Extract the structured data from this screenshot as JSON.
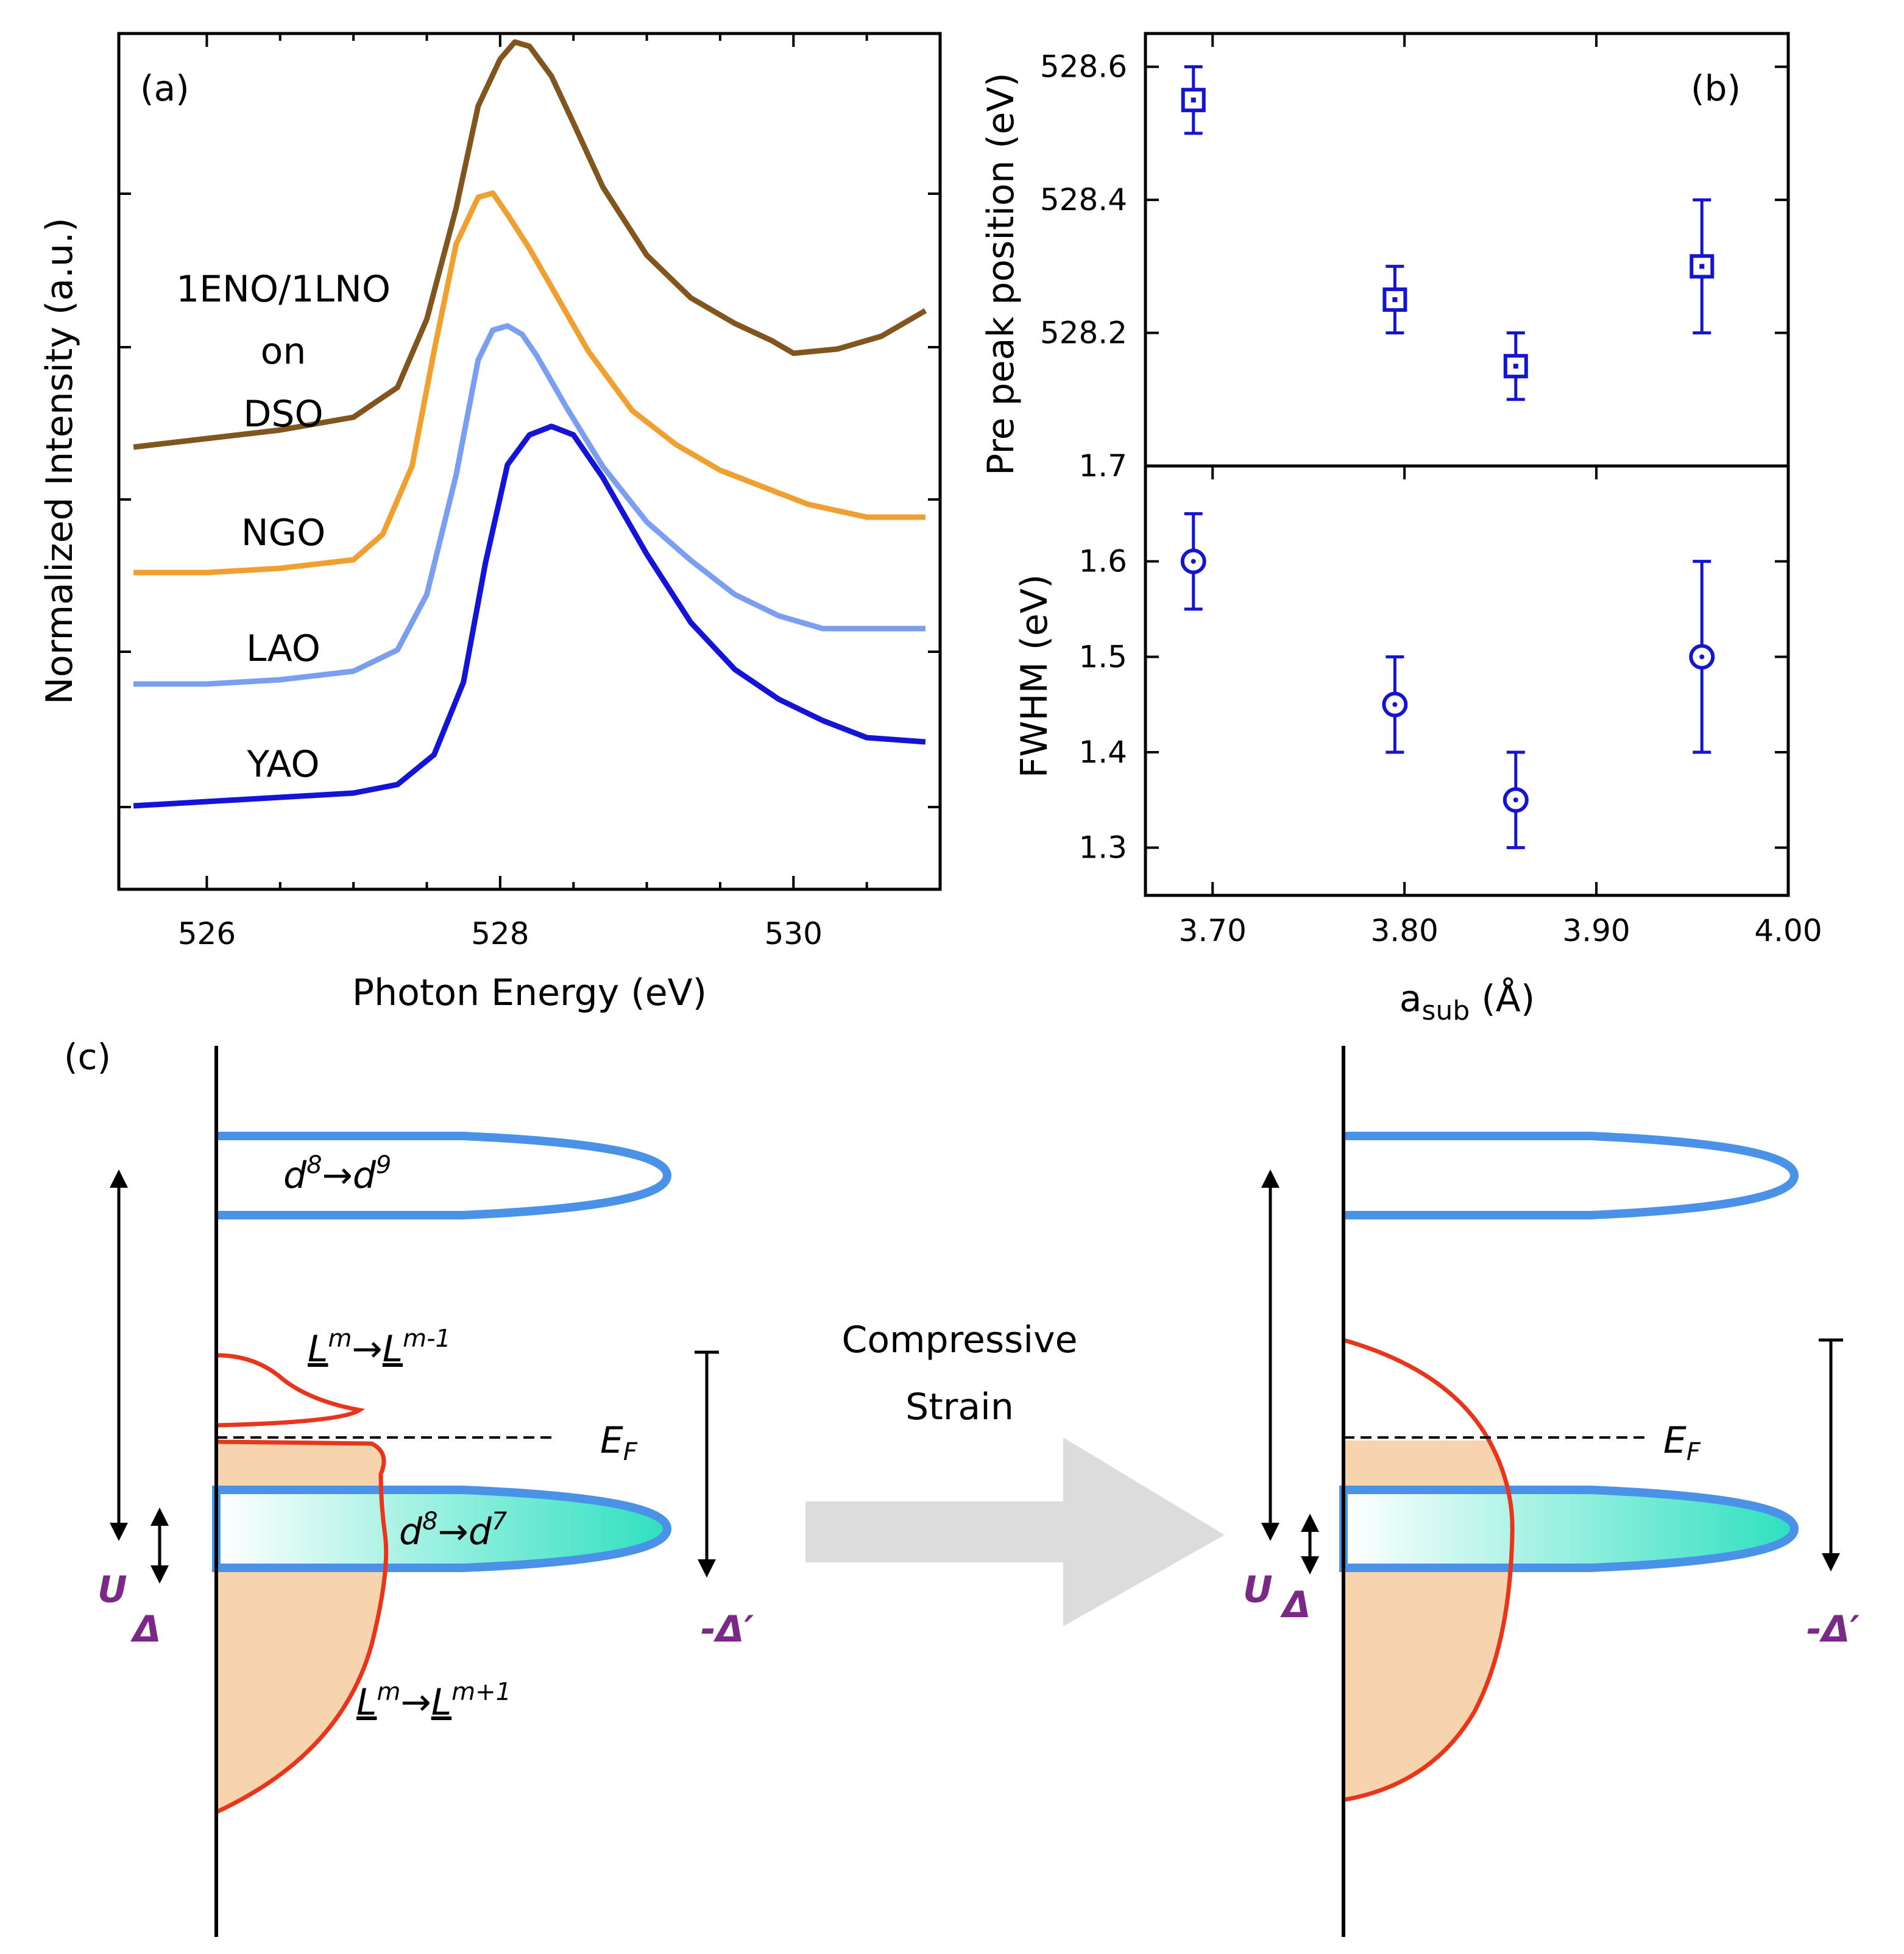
{
  "chart_data": [
    {
      "panel": "(a)",
      "type": "line",
      "xlabel": "Photon Energy (eV)",
      "ylabel": "Normalized Intensity (a.u.)",
      "xlim": [
        525.4,
        531.0
      ],
      "xticks": [
        "526",
        "528",
        "530"
      ],
      "title_lines": [
        "1ENO/1LNO",
        "on",
        "DSO"
      ],
      "series": [
        {
          "name": "DSO",
          "color": "#80561e",
          "x": [
            525.5,
            526.0,
            526.5,
            527.0,
            527.3,
            527.5,
            527.7,
            527.85,
            528.0,
            528.1,
            528.2,
            528.35,
            528.5,
            528.7,
            529.0,
            529.3,
            529.6,
            529.85,
            530.0,
            530.3,
            530.6,
            530.9
          ],
          "y": [
            0.02,
            0.04,
            0.06,
            0.09,
            0.16,
            0.32,
            0.58,
            0.82,
            0.93,
            0.97,
            0.96,
            0.89,
            0.78,
            0.63,
            0.47,
            0.37,
            0.31,
            0.27,
            0.24,
            0.25,
            0.28,
            0.34
          ]
        },
        {
          "name": "NGO",
          "color": "#f0a030",
          "x": [
            525.5,
            526.0,
            526.5,
            527.0,
            527.2,
            527.4,
            527.55,
            527.7,
            527.85,
            527.95,
            528.05,
            528.2,
            528.4,
            528.6,
            528.9,
            529.2,
            529.5,
            529.8,
            530.1,
            530.5,
            530.9
          ],
          "y": [
            0.0,
            0.0,
            0.01,
            0.03,
            0.09,
            0.25,
            0.52,
            0.77,
            0.88,
            0.89,
            0.84,
            0.76,
            0.64,
            0.52,
            0.38,
            0.3,
            0.24,
            0.2,
            0.16,
            0.13,
            0.13
          ]
        },
        {
          "name": "LAO",
          "color": "#7b9ff0",
          "x": [
            525.5,
            526.0,
            526.5,
            527.0,
            527.3,
            527.5,
            527.7,
            527.85,
            527.95,
            528.05,
            528.15,
            528.25,
            528.45,
            528.7,
            529.0,
            529.3,
            529.6,
            529.9,
            530.2,
            530.5,
            530.9
          ],
          "y": [
            0.01,
            0.01,
            0.02,
            0.04,
            0.09,
            0.22,
            0.5,
            0.77,
            0.84,
            0.85,
            0.83,
            0.78,
            0.66,
            0.52,
            0.39,
            0.3,
            0.22,
            0.17,
            0.14,
            0.14,
            0.14
          ]
        },
        {
          "name": "YAO",
          "color": "#1414d8",
          "x": [
            525.5,
            526.0,
            526.5,
            527.0,
            527.3,
            527.55,
            527.75,
            527.9,
            528.05,
            528.2,
            528.35,
            528.5,
            528.7,
            529.0,
            529.3,
            529.6,
            529.9,
            530.2,
            530.5,
            530.9
          ],
          "y": [
            0.01,
            0.02,
            0.03,
            0.04,
            0.06,
            0.13,
            0.3,
            0.58,
            0.81,
            0.88,
            0.9,
            0.88,
            0.78,
            0.6,
            0.44,
            0.33,
            0.26,
            0.21,
            0.17,
            0.16
          ]
        }
      ]
    },
    {
      "panel": "(b)",
      "type": "scatter",
      "xlabel_main": "a",
      "xlabel_sub": "sub",
      "xlabel_unit": " (Å)",
      "xlim": [
        3.665,
        4.0
      ],
      "xticks": [
        "3.70",
        "3.80",
        "3.90",
        "4.00"
      ],
      "top": {
        "ylabel": "Pre peak position (eV)",
        "ylim": [
          528.0,
          528.65
        ],
        "yticks": [
          "528.6",
          "528.4",
          "528.2"
        ],
        "bottom_label": "1.7",
        "marker": "square",
        "points": [
          {
            "x": 3.69,
            "y": 528.55,
            "err": 0.05
          },
          {
            "x": 3.795,
            "y": 528.25,
            "err": 0.05
          },
          {
            "x": 3.858,
            "y": 528.15,
            "err": 0.05
          },
          {
            "x": 3.955,
            "y": 528.3,
            "err": 0.1
          }
        ]
      },
      "bottom": {
        "ylabel": "FWHM (eV)",
        "ylim": [
          1.25,
          1.7
        ],
        "yticks": [
          "1.6",
          "1.5",
          "1.4",
          "1.3"
        ],
        "marker": "circle",
        "points": [
          {
            "x": 3.69,
            "y": 1.6,
            "err": 0.05
          },
          {
            "x": 3.795,
            "y": 1.45,
            "err": 0.05
          },
          {
            "x": 3.858,
            "y": 1.35,
            "err": 0.05
          },
          {
            "x": 3.955,
            "y": 1.5,
            "err": 0.1
          }
        ]
      },
      "color": "#1515d0"
    },
    {
      "panel": "(c)",
      "type": "diagram",
      "arrow_text": [
        "Compressive",
        "Strain"
      ],
      "fermi_label": "E",
      "fermi_sub": "F",
      "u_label": "U",
      "delta_label": "Δ",
      "delta_prime_label": "-Δ′",
      "upper_hubbard": {
        "pre": "d",
        "sup1": "8",
        "mid": "→d",
        "sup2": "9"
      },
      "lower_hubbard": {
        "pre": "d",
        "sup1": "8",
        "mid": "→d",
        "sup2": "7"
      },
      "ligand_upper": {
        "pre": "L",
        "sup1": "m",
        "mid": "→",
        "pre2": "L",
        "sup2": "m-1"
      },
      "ligand_lower": {
        "pre": "L",
        "sup1": "m",
        "mid": "→",
        "pre2": "L",
        "sup2": "m+1"
      },
      "colors": {
        "band_edge": "#4a92e8",
        "band_fill": "#2ee0c0",
        "ligand": "#e8361c",
        "ligand_fill": "#f7d4ae",
        "arrow": "#dcdcdc",
        "label": "#7a2a86"
      }
    }
  ]
}
